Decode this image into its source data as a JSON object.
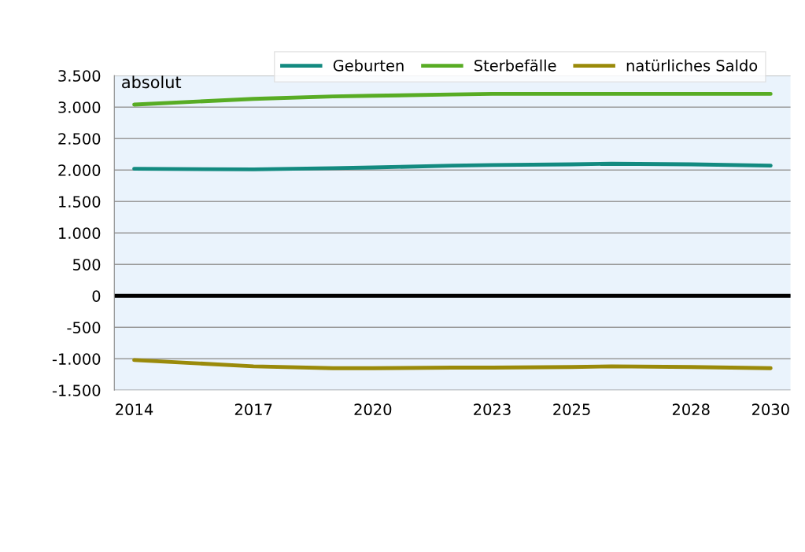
{
  "chart_data": {
    "type": "line",
    "x": [
      2014,
      2017,
      2019,
      2020,
      2022,
      2023,
      2025,
      2026,
      2028,
      2030
    ],
    "series": [
      {
        "name": "Geburten",
        "color": "#138a80",
        "values": [
          2020,
          2010,
          2030,
          2040,
          2070,
          2080,
          2090,
          2100,
          2090,
          2070
        ]
      },
      {
        "name": "Sterbefälle",
        "color": "#58ac24",
        "values": [
          3040,
          3130,
          3170,
          3180,
          3200,
          3210,
          3210,
          3210,
          3210,
          3210
        ]
      },
      {
        "name": "natürliches Saldo",
        "color": "#9a8a0a",
        "values": [
          -1020,
          -1120,
          -1150,
          -1150,
          -1140,
          -1140,
          -1130,
          -1120,
          -1130,
          -1150
        ]
      }
    ],
    "xlim": [
      2013.5,
      2030.5
    ],
    "xticks": [
      2014,
      2017,
      2020,
      2023,
      2025,
      2028,
      2030
    ],
    "ylim": [
      -1500,
      3500
    ],
    "yticks": [
      {
        "value": -1500,
        "label": "-1.500"
      },
      {
        "value": -1000,
        "label": "-1.000"
      },
      {
        "value": -500,
        "label": "-500"
      },
      0,
      500,
      {
        "value": 1000,
        "label": "1.000"
      },
      {
        "value": 1500,
        "label": "1.500"
      },
      {
        "value": 2000,
        "label": "2.000"
      },
      {
        "value": 2500,
        "label": "2.500"
      },
      {
        "value": 3000,
        "label": "3.000"
      },
      {
        "value": 3500,
        "label": "3.500"
      }
    ],
    "ref_lines": [
      {
        "axis": "y",
        "value": 0,
        "color": "#000000"
      }
    ],
    "annotations": [
      "absolut"
    ],
    "grid": "y",
    "legend": "top",
    "marker": "none",
    "line_style": "solid"
  }
}
